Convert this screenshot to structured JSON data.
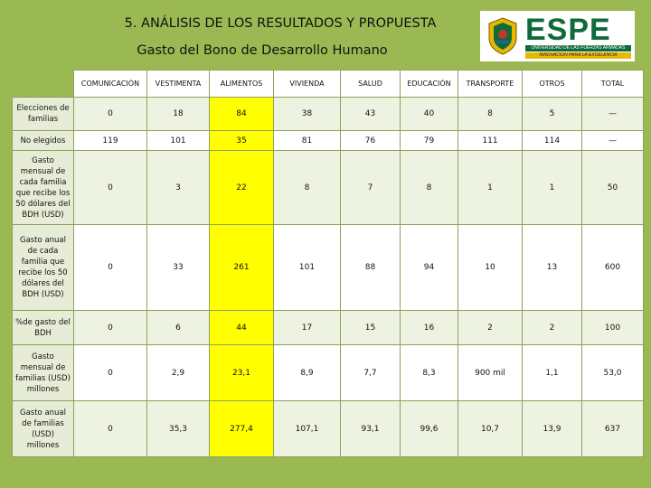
{
  "header": {
    "title": "5. ANÁLISIS DE LOS RESULTADOS Y PROPUESTA",
    "subtitle": "Gasto del Bono de Desarrollo Humano"
  },
  "logo": {
    "name": "ESPE",
    "line1": "UNIVERSIDAD DE LAS FUERZAS ARMADAS",
    "line2": "INNOVACIÓN PARA LA EXCELENCIA",
    "brand_color": "#0f6b3a",
    "accent_color": "#e8b800"
  },
  "table": {
    "columns": [
      "COMUNICACIÓN",
      "VESTIMENTA",
      "ALIMENTOS",
      "VIVIENDA",
      "SALUD",
      "EDUCACIÓN",
      "TRANSPORTE",
      "OTROS",
      "TOTAL"
    ],
    "highlight_column": "ALIMENTOS",
    "highlight_color": "#ffff00",
    "rows": [
      {
        "label": "Elecciones de familias",
        "values": [
          "0",
          "18",
          "84",
          "38",
          "43",
          "40",
          "8",
          "5",
          "—"
        ]
      },
      {
        "label": "No elegidos",
        "values": [
          "119",
          "101",
          "35",
          "81",
          "76",
          "79",
          "111",
          "114",
          "—"
        ]
      },
      {
        "label": "Gasto mensual de cada familia que recibe los 50 dólares del BDH (USD)",
        "values": [
          "0",
          "3",
          "22",
          "8",
          "7",
          "8",
          "1",
          "1",
          "50"
        ]
      },
      {
        "label": "Gasto anual de cada familia que recibe los 50 dólares del BDH (USD)",
        "values": [
          "0",
          "33",
          "261",
          "101",
          "88",
          "94",
          "10",
          "13",
          "600"
        ]
      },
      {
        "label": "%de gasto del BDH",
        "values": [
          "0",
          "6",
          "44",
          "17",
          "15",
          "16",
          "2",
          "2",
          "100"
        ]
      },
      {
        "label": "Gasto mensual de familias (USD) millones",
        "values": [
          "0",
          "2,9",
          "23,1",
          "8,9",
          "7,7",
          "8,3",
          "900 mil",
          "1,1",
          "53,0"
        ]
      },
      {
        "label": "Gasto anual de familias (USD) millones",
        "values": [
          "0",
          "35,3",
          "277,4",
          "107,1",
          "93,1",
          "99,6",
          "10,7",
          "13,9",
          "637"
        ]
      }
    ]
  }
}
